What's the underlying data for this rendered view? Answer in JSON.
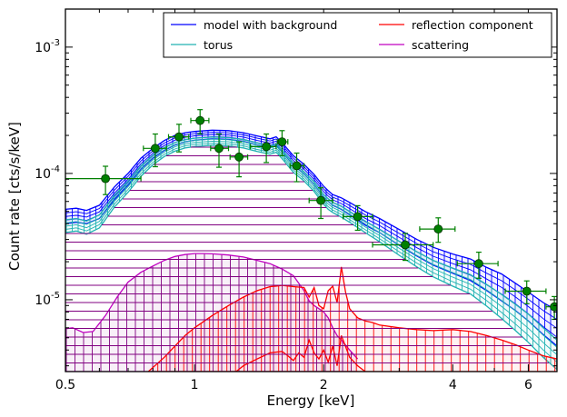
{
  "chart_data": {
    "type": "line",
    "xlabel": "Energy [keV]",
    "ylabel": "Count rate [cts/s/keV]",
    "x_scale": "log",
    "y_scale": "log",
    "xlim": [
      0.5,
      7.0
    ],
    "ylim": [
      2.7e-06,
      0.002
    ],
    "x_ticks": [
      {
        "value": 0.5,
        "label": "0.5"
      },
      {
        "value": 1,
        "label": "1"
      },
      {
        "value": 2,
        "label": "2"
      },
      {
        "value": 4,
        "label": "4"
      },
      {
        "value": 6,
        "label": "6"
      }
    ],
    "y_ticks": [
      {
        "value": 1e-05,
        "base": "10",
        "exp": "-5"
      },
      {
        "value": 0.0001,
        "base": "10",
        "exp": "-4"
      },
      {
        "value": 0.001,
        "base": "10",
        "exp": "-3"
      }
    ],
    "grid": false,
    "legend": {
      "placement": "top-right",
      "columns": 2,
      "entries": [
        {
          "label": "model with background",
          "color": "#0000ff"
        },
        {
          "label": "reflection component",
          "color": "#ff0000"
        },
        {
          "label": "torus",
          "color": "#20b2b2"
        },
        {
          "label": "scattering",
          "color": "#c000c0"
        }
      ]
    },
    "series": [
      {
        "name": "model with background",
        "color": "#0000ff",
        "band": true,
        "x": [
          0.5,
          0.53,
          0.56,
          0.6,
          0.65,
          0.7,
          0.75,
          0.8,
          0.85,
          0.9,
          0.95,
          1.0,
          1.1,
          1.2,
          1.3,
          1.4,
          1.5,
          1.55,
          1.6,
          1.7,
          1.8,
          1.9,
          2.0,
          2.05,
          2.1,
          2.15,
          2.2,
          2.3,
          2.5,
          2.7,
          3.0,
          3.3,
          3.6,
          4.0,
          4.4,
          4.8,
          5.2,
          5.6,
          6.0,
          6.5,
          7.0
        ],
        "upper": [
          5.2e-05,
          5.3e-05,
          5.1e-05,
          5.6e-05,
          7.8e-05,
          0.0001,
          0.000132,
          0.000158,
          0.000182,
          0.0002,
          0.00021,
          0.000215,
          0.00022,
          0.000218,
          0.00021,
          0.000198,
          0.000188,
          0.000195,
          0.000175,
          0.000138,
          0.000118,
          9.8e-05,
          7.9e-05,
          7.3e-05,
          6.8e-05,
          6.6e-05,
          6.4e-05,
          5.9e-05,
          5e-05,
          4.4e-05,
          3.6e-05,
          3e-05,
          2.6e-05,
          2.3e-05,
          2.1e-05,
          1.8e-05,
          1.6e-05,
          1.35e-05,
          1.15e-05,
          9.5e-06,
          8.2e-06
        ],
        "lower": [
          4e-05,
          4.1e-05,
          4e-05,
          4.4e-05,
          6.2e-05,
          8.1e-05,
          0.000108,
          0.000132,
          0.000152,
          0.000168,
          0.000178,
          0.000183,
          0.000188,
          0.000186,
          0.000179,
          0.000168,
          0.00016,
          0.000166,
          0.000148,
          0.000116,
          9.9e-05,
          8.2e-05,
          6.5e-05,
          6e-05,
          5.6e-05,
          5.4e-05,
          5.2e-05,
          4.7e-05,
          3.9e-05,
          3.4e-05,
          2.7e-05,
          2.22e-05,
          1.88e-05,
          1.62e-05,
          1.42e-05,
          1.18e-05,
          9.8e-06,
          8.2e-06,
          6.8e-06,
          5.3e-06,
          4.3e-06
        ]
      },
      {
        "name": "torus",
        "color": "#20b2b2",
        "band": true,
        "x": [
          0.5,
          0.53,
          0.56,
          0.6,
          0.65,
          0.7,
          0.75,
          0.8,
          0.85,
          0.9,
          0.95,
          1.0,
          1.1,
          1.2,
          1.3,
          1.4,
          1.5,
          1.55,
          1.6,
          1.7,
          1.8,
          1.9,
          2.0,
          2.05,
          2.1,
          2.15,
          2.2,
          2.3,
          2.5,
          2.7,
          3.0,
          3.3,
          3.6,
          4.0,
          4.4,
          4.8,
          5.2,
          5.6,
          6.0,
          6.5,
          7.0
        ],
        "upper": [
          4.3e-05,
          4.4e-05,
          4.2e-05,
          4.7e-05,
          6.7e-05,
          8.7e-05,
          0.000115,
          0.00014,
          0.00016,
          0.000176,
          0.000185,
          0.00019,
          0.000194,
          0.000192,
          0.000185,
          0.000174,
          0.000165,
          0.000171,
          0.000154,
          0.000121,
          0.000103,
          8.6e-05,
          6.8e-05,
          6.3e-05,
          5.9e-05,
          5.7e-05,
          5.5e-05,
          5e-05,
          4.2e-05,
          3.6e-05,
          2.9e-05,
          2.4e-05,
          2.05e-05,
          1.78e-05,
          1.58e-05,
          1.32e-05,
          1.1e-05,
          9.2e-06,
          7.7e-06,
          6e-06,
          4.8e-06
        ],
        "lower": [
          3.4e-05,
          3.5e-05,
          3.3e-05,
          3.7e-05,
          5.4e-05,
          7.1e-05,
          9.5e-05,
          0.000117,
          0.000136,
          0.00015,
          0.000159,
          0.000163,
          0.000167,
          0.000165,
          0.000159,
          0.000149,
          0.000142,
          0.000147,
          0.000131,
          0.000102,
          8.7e-05,
          7.2e-05,
          5.7e-05,
          5.2e-05,
          4.9e-05,
          4.7e-05,
          4.5e-05,
          4.1e-05,
          3.4e-05,
          2.88e-05,
          2.25e-05,
          1.82e-05,
          1.52e-05,
          1.28e-05,
          1.11e-05,
          8.9e-06,
          7.1e-06,
          5.7e-06,
          4.6e-06,
          3.5e-06,
          2.8e-06
        ]
      },
      {
        "name": "scattering",
        "color": "#c000c0",
        "band": true,
        "x": [
          0.5,
          0.52,
          0.55,
          0.58,
          0.62,
          0.66,
          0.7,
          0.75,
          0.8,
          0.85,
          0.9,
          0.95,
          1.0,
          1.05,
          1.1,
          1.2,
          1.3,
          1.4,
          1.5,
          1.6,
          1.7,
          1.8,
          1.85,
          1.9,
          1.95,
          2.0,
          2.05,
          2.1,
          2.15,
          2.2,
          2.3,
          2.4
        ],
        "upper": [
          5.9e-06,
          6e-06,
          5.5e-06,
          5.6e-06,
          7.5e-06,
          1.05e-05,
          1.38e-05,
          1.65e-05,
          1.85e-05,
          2.05e-05,
          2.2e-05,
          2.28e-05,
          2.32e-05,
          2.32e-05,
          2.31e-05,
          2.26e-05,
          2.18e-05,
          2.05e-05,
          1.93e-05,
          1.75e-05,
          1.55e-05,
          1.18e-05,
          9.8e-06,
          9e-06,
          8.5e-06,
          8e-06,
          7.2e-06,
          6e-06,
          5.2e-06,
          4.8e-06,
          4e-06,
          3.4e-06
        ],
        "lower": [
          2.7e-06,
          2.7e-06,
          2.7e-06,
          2.7e-06,
          2.7e-06,
          2.7e-06,
          2.7e-06,
          2.7e-06,
          2.7e-06,
          2.7e-06,
          2.7e-06,
          2.7e-06,
          2.7e-06,
          2.7e-06,
          2.7e-06,
          2.7e-06,
          2.7e-06,
          2.7e-06,
          2.7e-06,
          2.7e-06,
          2.7e-06,
          2.7e-06,
          2.7e-06,
          2.7e-06,
          2.7e-06,
          2.7e-06,
          2.7e-06,
          2.7e-06,
          2.7e-06,
          2.7e-06,
          2.7e-06,
          2.7e-06
        ]
      },
      {
        "name": "reflection component",
        "color": "#ff0000",
        "band": true,
        "x": [
          0.78,
          0.85,
          0.9,
          0.95,
          1.0,
          1.1,
          1.2,
          1.3,
          1.4,
          1.5,
          1.55,
          1.6,
          1.7,
          1.8,
          1.85,
          1.9,
          1.95,
          2.0,
          2.05,
          2.1,
          2.15,
          2.2,
          2.25,
          2.3,
          2.4,
          2.5,
          2.6,
          2.7,
          3.0,
          3.3,
          3.6,
          4.0,
          4.4,
          4.8,
          5.2,
          5.6,
          6.0,
          6.5,
          7.0
        ],
        "upper": [
          2.7e-06,
          3.5e-06,
          4.3e-06,
          5.2e-06,
          6e-06,
          7.5e-06,
          9e-06,
          1.05e-05,
          1.18e-05,
          1.27e-05,
          1.28e-05,
          1.3e-05,
          1.27e-05,
          1.25e-05,
          1.05e-05,
          1.25e-05,
          9e-06,
          8.5e-06,
          1.18e-05,
          1.28e-05,
          9.5e-06,
          1.82e-05,
          1.15e-05,
          8.5e-06,
          7.2e-06,
          6.8e-06,
          6.6e-06,
          6.3e-06,
          6e-06,
          5.8e-06,
          5.7e-06,
          5.8e-06,
          5.6e-06,
          5.2e-06,
          4.8e-06,
          4.4e-06,
          4e-06,
          3.6e-06,
          3.4e-06
        ],
        "lower": [
          2.7e-06,
          2.7e-06,
          2.7e-06,
          2.7e-06,
          2.7e-06,
          2.7e-06,
          2.7e-06,
          2.7e-06,
          2.7e-06,
          2.7e-06,
          2.7e-06,
          2.7e-06,
          2.7e-06,
          2.7e-06,
          2.7e-06,
          2.7e-06,
          2.7e-06,
          2.7e-06,
          2.7e-06,
          2.7e-06,
          2.7e-06,
          2.7e-06,
          2.7e-06,
          2.7e-06,
          2.7e-06,
          2.7e-06,
          2.7e-06,
          2.7e-06,
          2.7e-06,
          2.7e-06,
          2.7e-06,
          2.7e-06,
          2.7e-06,
          2.7e-06,
          2.7e-06,
          2.7e-06,
          2.7e-06,
          2.7e-06,
          2.7e-06
        ]
      },
      {
        "name": "reflection component (lower curve)",
        "color": "#ff0000",
        "band": false,
        "x": [
          1.25,
          1.3,
          1.4,
          1.5,
          1.6,
          1.65,
          1.7,
          1.75,
          1.8,
          1.85,
          1.9,
          1.95,
          2.0,
          2.05,
          2.1,
          2.15,
          2.2,
          2.3,
          2.4,
          2.5
        ],
        "values": [
          2.7e-06,
          3e-06,
          3.4e-06,
          3.8e-06,
          3.9e-06,
          3.6e-06,
          3.3e-06,
          3.8e-06,
          3.5e-06,
          4.8e-06,
          3.8e-06,
          3.4e-06,
          4e-06,
          3.2e-06,
          4.3e-06,
          3e-06,
          5.2e-06,
          3.5e-06,
          3e-06,
          2.7e-06
        ]
      }
    ],
    "data_points": {
      "color": "#008000",
      "points": [
        {
          "x": 0.62,
          "y": 9.1e-05,
          "xlo": 0.5,
          "xhi": 0.75,
          "ylo": 6.8e-05,
          "yhi": 0.000114
        },
        {
          "x": 0.81,
          "y": 0.000158,
          "xlo": 0.76,
          "xhi": 0.86,
          "ylo": 0.000113,
          "yhi": 0.000205
        },
        {
          "x": 0.92,
          "y": 0.000195,
          "xlo": 0.87,
          "xhi": 0.97,
          "ylo": 0.000148,
          "yhi": 0.000245
        },
        {
          "x": 1.03,
          "y": 0.000262,
          "xlo": 0.98,
          "xhi": 1.08,
          "ylo": 0.000205,
          "yhi": 0.00032
        },
        {
          "x": 1.14,
          "y": 0.000158,
          "xlo": 1.09,
          "xhi": 1.2,
          "ylo": 0.000112,
          "yhi": 0.000205
        },
        {
          "x": 1.27,
          "y": 0.000135,
          "xlo": 1.21,
          "xhi": 1.33,
          "ylo": 9.4e-05,
          "yhi": 0.000178
        },
        {
          "x": 1.47,
          "y": 0.000163,
          "xlo": 1.35,
          "xhi": 1.55,
          "ylo": 0.000122,
          "yhi": 0.000205
        },
        {
          "x": 1.6,
          "y": 0.000178,
          "xlo": 1.56,
          "xhi": 1.65,
          "ylo": 0.000138,
          "yhi": 0.000218
        },
        {
          "x": 1.73,
          "y": 0.000115,
          "xlo": 1.67,
          "xhi": 1.8,
          "ylo": 8.6e-05,
          "yhi": 0.000145
        },
        {
          "x": 1.97,
          "y": 6.1e-05,
          "xlo": 1.85,
          "xhi": 2.1,
          "ylo": 4.4e-05,
          "yhi": 7.7e-05
        },
        {
          "x": 2.4,
          "y": 4.55e-05,
          "xlo": 2.22,
          "xhi": 2.6,
          "ylo": 3.55e-05,
          "yhi": 5.55e-05
        },
        {
          "x": 3.1,
          "y": 2.72e-05,
          "xlo": 2.6,
          "xhi": 3.6,
          "ylo": 2.05e-05,
          "yhi": 3.35e-05
        },
        {
          "x": 3.7,
          "y": 3.63e-05,
          "xlo": 3.35,
          "xhi": 4.05,
          "ylo": 2.85e-05,
          "yhi": 4.45e-05
        },
        {
          "x": 4.6,
          "y": 1.93e-05,
          "xlo": 4.1,
          "xhi": 5.1,
          "ylo": 1.48e-05,
          "yhi": 2.38e-05
        },
        {
          "x": 5.95,
          "y": 1.17e-05,
          "xlo": 5.3,
          "xhi": 6.6,
          "ylo": 9.3e-06,
          "yhi": 1.41e-05
        },
        {
          "x": 6.9,
          "y": 8.8e-06,
          "xlo": 6.6,
          "xhi": 7.2,
          "ylo": 7e-06,
          "yhi": 1.06e-05
        }
      ]
    }
  }
}
